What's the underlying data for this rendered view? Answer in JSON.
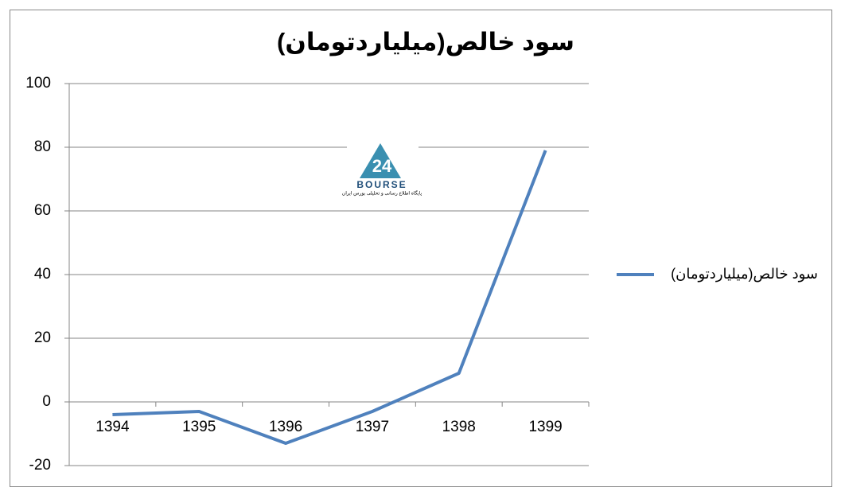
{
  "chart_data": {
    "type": "line",
    "title": "سود خالص(میلیاردتومان)",
    "categories": [
      "1394",
      "1395",
      "1396",
      "1397",
      "1398",
      "1399"
    ],
    "series": [
      {
        "name": "سود خالص(میلیاردتومان)",
        "color": "#4f81bd",
        "values": [
          -4,
          -3,
          -13,
          -3,
          9,
          79
        ]
      }
    ],
    "ylim": [
      -20,
      100
    ],
    "yticks": [
      -20,
      0,
      20,
      40,
      60,
      80,
      100
    ],
    "grid": true,
    "legend": "right"
  },
  "watermark": {
    "number": "24",
    "text": "BOURSE",
    "caption": "پایگاه اطلاع رسانی و تحلیلی بورس ایران"
  }
}
